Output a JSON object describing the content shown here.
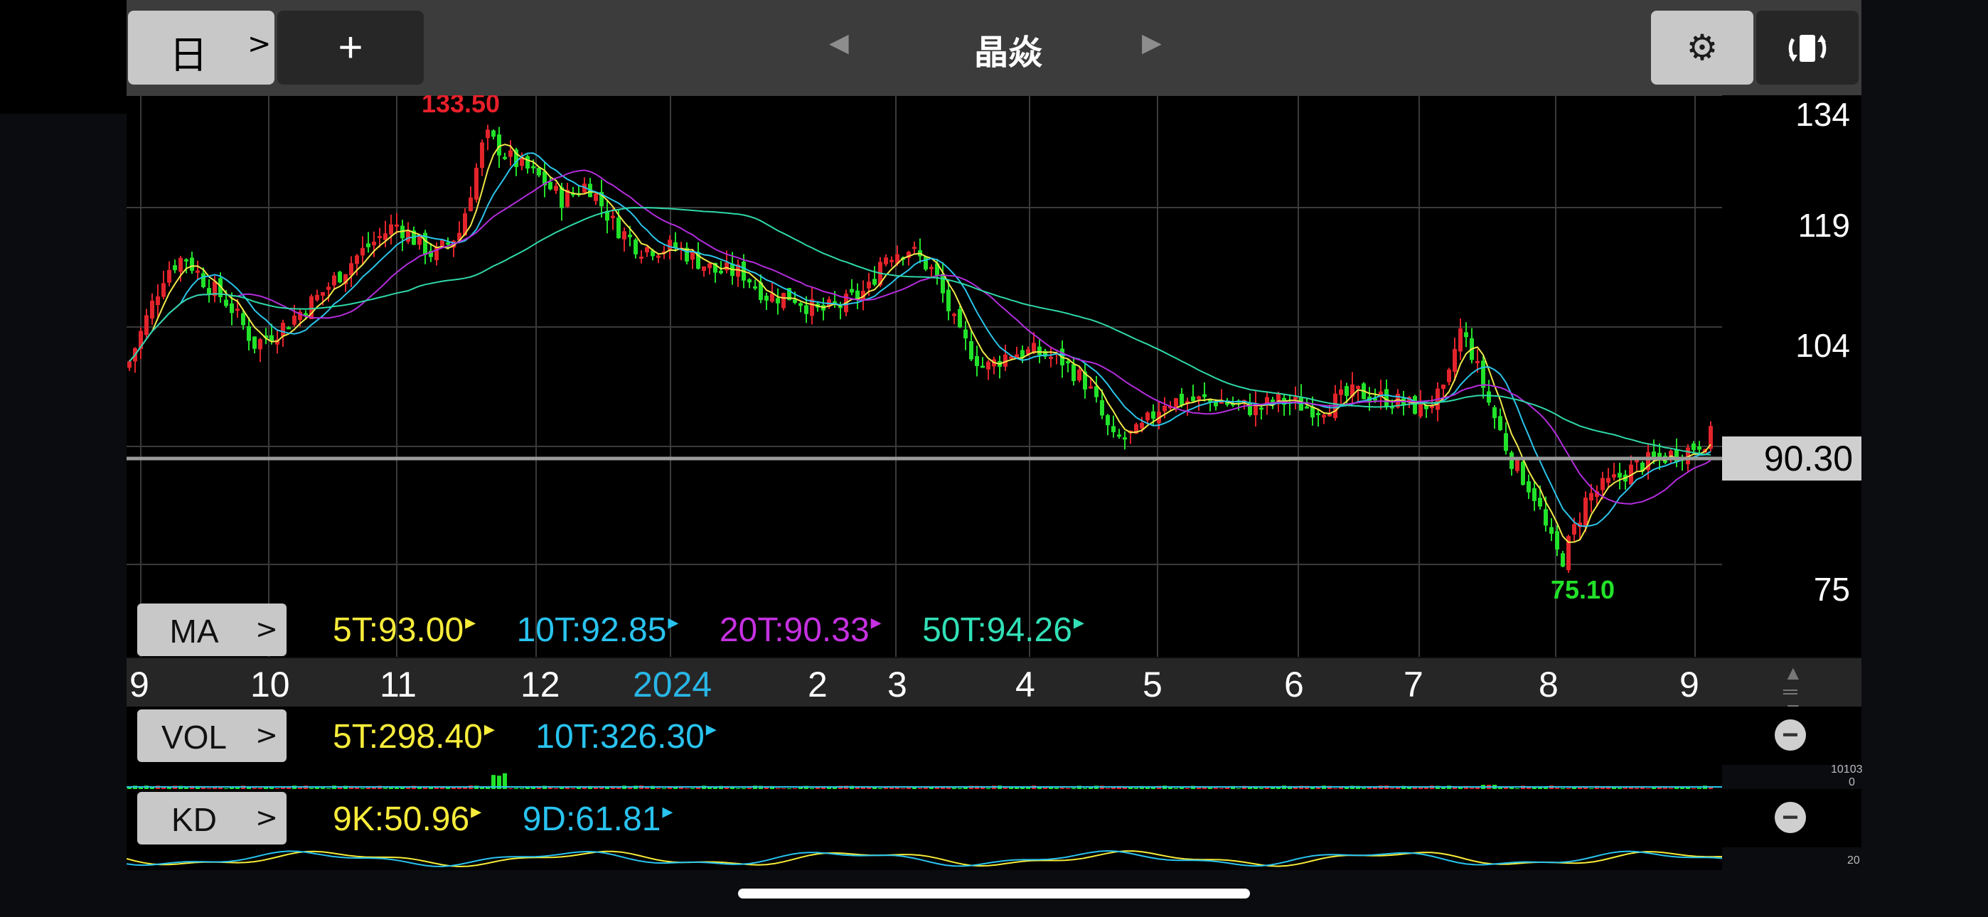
{
  "toolbar": {
    "period_label": "日",
    "period_chevron": ">",
    "add_label": "+",
    "prev_arrow": "◀",
    "next_arrow": "▶",
    "title": "晶焱",
    "settings_icon": "gear-icon",
    "rotate_icon": "rotate-screen-icon"
  },
  "price_chart": {
    "y_labels": [
      "134",
      "119",
      "104",
      "90",
      "75"
    ],
    "current_price": "90.30",
    "high_label": "133.50",
    "low_label": "75.10",
    "colors": {
      "up": "#e3242b",
      "down": "#22e22a",
      "ma5": "#f0e84a",
      "ma10": "#2bc4ea",
      "ma20": "#b32ddb",
      "ma50": "#2fd8a8"
    }
  },
  "ma": {
    "label": "MA",
    "items": [
      {
        "text": "5T:93.00",
        "color": "#f7ec3a"
      },
      {
        "text": "10T:92.85",
        "color": "#29c3ef"
      },
      {
        "text": "20T:90.33",
        "color": "#c531e0"
      },
      {
        "text": "50T:94.26",
        "color": "#32e0b6"
      }
    ]
  },
  "date_axis": {
    "labels": [
      {
        "text": "9",
        "year": false
      },
      {
        "text": "10",
        "year": false
      },
      {
        "text": "11",
        "year": false
      },
      {
        "text": "12",
        "year": false
      },
      {
        "text": "2024",
        "year": true
      },
      {
        "text": "2",
        "year": false
      },
      {
        "text": "3",
        "year": false
      },
      {
        "text": "4",
        "year": false
      },
      {
        "text": "5",
        "year": false
      },
      {
        "text": "6",
        "year": false
      },
      {
        "text": "7",
        "year": false
      },
      {
        "text": "8",
        "year": false
      },
      {
        "text": "9",
        "year": false
      }
    ]
  },
  "vol": {
    "label": "VOL",
    "items": [
      {
        "text": "5T:298.40",
        "color": "#f7ec3a"
      },
      {
        "text": "10T:326.30",
        "color": "#29c3ef"
      }
    ],
    "scale_max": "10103",
    "scale_min": "0"
  },
  "kd": {
    "label": "KD",
    "items": [
      {
        "text": "9K:50.96",
        "color": "#f7ec3a"
      },
      {
        "text": "9D:61.81",
        "color": "#29c3ef"
      }
    ],
    "scale": "20"
  }
}
